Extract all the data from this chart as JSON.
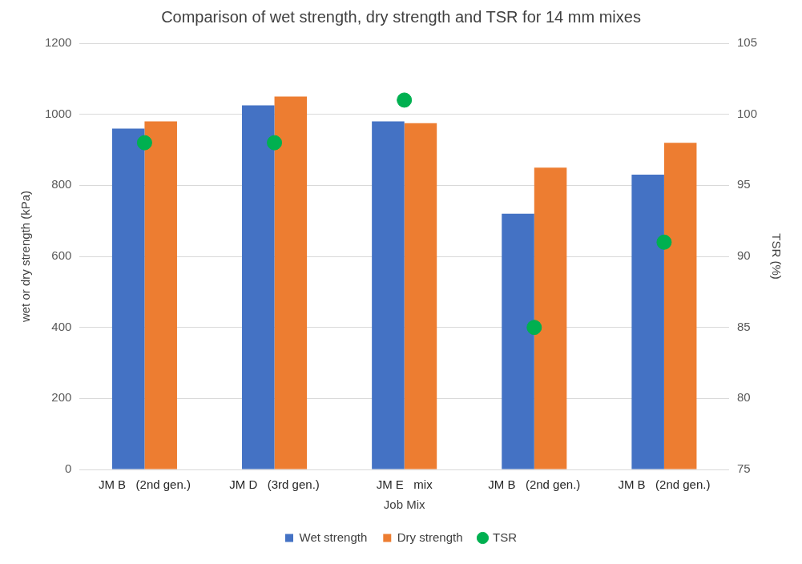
{
  "chart_data": {
    "type": "bar",
    "title": "Comparison of wet strength, dry strength and TSR for 14 mm mixes",
    "xlabel": "Job Mix",
    "ylabel": "wet or dry strength (kPa)",
    "y2label": "TSR (%)",
    "categories": [
      "JM B   (2nd gen.)",
      "JM D   (3rd gen.)",
      "JM E   mix",
      "JM B   (2nd gen.)",
      "JM B   (2nd gen.)"
    ],
    "series": [
      {
        "name": "Wet strength",
        "color": "#4472c4",
        "values": [
          960,
          1025,
          980,
          720,
          830
        ]
      },
      {
        "name": "Dry strength",
        "color": "#ed7d31",
        "values": [
          980,
          1050,
          975,
          850,
          920
        ]
      },
      {
        "name": "TSR",
        "type": "scatter",
        "axis": "y2",
        "color": "#00b050",
        "values": [
          98,
          98,
          101,
          85,
          91
        ]
      }
    ],
    "ylim": [
      0,
      1200
    ],
    "yticks": [
      0,
      200,
      400,
      600,
      800,
      1000,
      1200
    ],
    "y2lim": [
      75,
      105
    ],
    "y2ticks": [
      75,
      80,
      85,
      90,
      95,
      100,
      105
    ],
    "grid": "y",
    "legend": "bottom",
    "marker": "circle"
  }
}
